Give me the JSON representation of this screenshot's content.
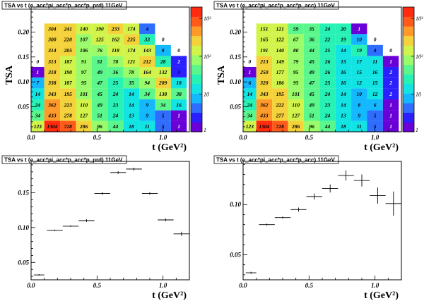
{
  "palette": [
    "#6a00d8",
    "#2a20ff",
    "#2f6dff",
    "#14b8ff",
    "#12e3e3",
    "#27f1b4",
    "#5cf78c",
    "#9afc6a",
    "#d2f44a",
    "#f5d23a",
    "#ff9a2a",
    "#ff5a1a",
    "#ff2a10"
  ],
  "chart_data": [
    {
      "type": "heatmap",
      "title": "TSA vs t (e_acc*pi_acc*p_acc*p_prd) 11GeV",
      "xlabel": "t (GeV²)",
      "ylabel": "TSA",
      "x_ticks": [
        "0.0",
        "0.5",
        "1.0"
      ],
      "y_ticks": [
        "0.05",
        "0.10",
        "0.15",
        "0.20"
      ],
      "xlim": [
        0,
        1.2
      ],
      "ylim": [
        0,
        0.25
      ],
      "x_bins": [
        0,
        0.1,
        0.22,
        0.34,
        0.46,
        0.58,
        0.7,
        0.82,
        0.94,
        1.06,
        1.18
      ],
      "y_bins": [
        0,
        0.022,
        0.043,
        0.065,
        0.087,
        0.109,
        0.13,
        0.152,
        0.174,
        0.196,
        0.217,
        0.239
      ],
      "z_ticks": [
        "1",
        "10",
        "10²",
        "10³"
      ],
      "zlim": [
        1,
        2000
      ],
      "cells": [
        [
          123,
          1304,
          728,
          286,
          96,
          44,
          18,
          11,
          5,
          1
        ],
        [
          34,
          433,
          278,
          127,
          51,
          24,
          13,
          9,
          5,
          1
        ],
        [
          24,
          362,
          223,
          110,
          49,
          23,
          14,
          9,
          34,
          16
        ],
        [
          14,
          343,
          195,
          101,
          45,
          24,
          14,
          34,
          138,
          38
        ],
        [
          7,
          338,
          187,
          95,
          47,
          25,
          35,
          94,
          209,
          18
        ],
        [
          1,
          318,
          190,
          97,
          49,
          36,
          78,
          164,
          132,
          3
        ],
        [
          0,
          313,
          187,
          91,
          51,
          78,
          121,
          212,
          28,
          2
        ],
        [
          null,
          314,
          205,
          106,
          76,
          118,
          174,
          143,
          8,
          0
        ],
        [
          null,
          300,
          220,
          107,
          125,
          162,
          235,
          33,
          0,
          null
        ],
        [
          null,
          304,
          241,
          140,
          190,
          233,
          174,
          4,
          null,
          null
        ],
        [
          null,
          null,
          null,
          null,
          null,
          null,
          null,
          null,
          null,
          null
        ]
      ]
    },
    {
      "type": "heatmap",
      "title": "TSA vs t (e_acc*pi_acc*p_acc*p_acc) 11GeV",
      "xlabel": "t (GeV²)",
      "ylabel": "TSA",
      "x_ticks": [
        "0.0",
        "0.5",
        "1.0"
      ],
      "y_ticks": [
        "0.05",
        "0.10",
        "0.15",
        "0.20"
      ],
      "xlim": [
        0,
        1.2
      ],
      "ylim": [
        0,
        0.25
      ],
      "x_bins": [
        0,
        0.1,
        0.22,
        0.34,
        0.46,
        0.58,
        0.7,
        0.82,
        0.94,
        1.06,
        1.18
      ],
      "y_bins": [
        0,
        0.022,
        0.043,
        0.065,
        0.087,
        0.109,
        0.13,
        0.152,
        0.174,
        0.196,
        0.217,
        0.239
      ],
      "z_ticks": [
        "1",
        "10",
        "10²",
        "10³"
      ],
      "zlim": [
        1,
        2000
      ],
      "cells": [
        [
          123,
          1304,
          728,
          286,
          96,
          44,
          18,
          11,
          5,
          1
        ],
        [
          34,
          433,
          277,
          127,
          51,
          24,
          13,
          9,
          5,
          1
        ],
        [
          24,
          362,
          222,
          110,
          49,
          23,
          14,
          8,
          6,
          1
        ],
        [
          14,
          343,
          195,
          101,
          45,
          24,
          14,
          10,
          12,
          2
        ],
        [
          6,
          320,
          186,
          95,
          47,
          25,
          16,
          12,
          15,
          2
        ],
        [
          1,
          250,
          177,
          95,
          49,
          26,
          16,
          15,
          16,
          2
        ],
        [
          0,
          213,
          149,
          79,
          45,
          26,
          15,
          17,
          11,
          1
        ],
        [
          null,
          191,
          140,
          80,
          44,
          25,
          14,
          19,
          4,
          0
        ],
        [
          null,
          165,
          122,
          67,
          36,
          22,
          19,
          10,
          0,
          null
        ],
        [
          null,
          151,
          121,
          59,
          35,
          24,
          20,
          1,
          null,
          null
        ],
        [
          null,
          null,
          null,
          null,
          null,
          null,
          null,
          null,
          null,
          null
        ]
      ]
    },
    {
      "type": "scatter",
      "title": "TSA vs t (e_acc*pi_acc*p_acc*p_prd) 11GeV",
      "xlabel": "t (GeV²)",
      "ylabel": "",
      "x_ticks": [
        "0.0",
        "0.5",
        "1.0"
      ],
      "y_ticks": [
        "0.05",
        "0.10",
        "0.15"
      ],
      "xlim": [
        0,
        1.2
      ],
      "ylim": [
        0.025,
        0.195
      ],
      "points": [
        {
          "x": 0.06,
          "y": 0.032,
          "xerr": 0.04,
          "yerr": 0.001
        },
        {
          "x": 0.18,
          "y": 0.096,
          "xerr": 0.06,
          "yerr": 0.001
        },
        {
          "x": 0.3,
          "y": 0.102,
          "xerr": 0.06,
          "yerr": 0.001
        },
        {
          "x": 0.42,
          "y": 0.11,
          "xerr": 0.06,
          "yerr": 0.002
        },
        {
          "x": 0.54,
          "y": 0.149,
          "xerr": 0.06,
          "yerr": 0.002
        },
        {
          "x": 0.66,
          "y": 0.179,
          "xerr": 0.06,
          "yerr": 0.002
        },
        {
          "x": 0.78,
          "y": 0.184,
          "xerr": 0.06,
          "yerr": 0.002
        },
        {
          "x": 0.9,
          "y": 0.149,
          "xerr": 0.06,
          "yerr": 0.002
        },
        {
          "x": 1.02,
          "y": 0.111,
          "xerr": 0.06,
          "yerr": 0.002
        },
        {
          "x": 1.14,
          "y": 0.091,
          "xerr": 0.06,
          "yerr": 0.003
        }
      ]
    },
    {
      "type": "scatter",
      "title": "TSA vs t (e_acc*pi_acc*p_acc*p_acc) 11GeV",
      "xlabel": "t (GeV²)",
      "ylabel": "",
      "x_ticks": [
        "0.0",
        "0.5",
        "1.0"
      ],
      "y_ticks": [
        "0.05",
        "0.10"
      ],
      "xlim": [
        0,
        1.2
      ],
      "ylim": [
        0.025,
        0.143
      ],
      "points": [
        {
          "x": 0.06,
          "y": 0.032,
          "xerr": 0.04,
          "yerr": 0.001
        },
        {
          "x": 0.18,
          "y": 0.08,
          "xerr": 0.06,
          "yerr": 0.001
        },
        {
          "x": 0.3,
          "y": 0.087,
          "xerr": 0.06,
          "yerr": 0.001
        },
        {
          "x": 0.42,
          "y": 0.095,
          "xerr": 0.06,
          "yerr": 0.002
        },
        {
          "x": 0.54,
          "y": 0.108,
          "xerr": 0.06,
          "yerr": 0.003
        },
        {
          "x": 0.66,
          "y": 0.116,
          "xerr": 0.06,
          "yerr": 0.004
        },
        {
          "x": 0.78,
          "y": 0.129,
          "xerr": 0.06,
          "yerr": 0.005
        },
        {
          "x": 0.9,
          "y": 0.124,
          "xerr": 0.06,
          "yerr": 0.006
        },
        {
          "x": 1.02,
          "y": 0.109,
          "xerr": 0.06,
          "yerr": 0.008
        },
        {
          "x": 1.14,
          "y": 0.101,
          "xerr": 0.06,
          "yerr": 0.012
        }
      ]
    }
  ]
}
